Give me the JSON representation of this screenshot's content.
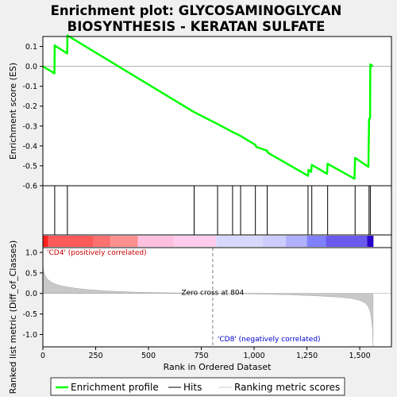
{
  "title_line1": "Enrichment plot: GLYCOSAMINOGLYCAN",
  "title_line2": "BIOSYNTHESIS - KERATAN SULFATE",
  "chart_data": {
    "type": "line",
    "panels": {
      "enrichment": {
        "ylabel": "Enrichment score (ES)",
        "ylim": [
          -0.6,
          0.15
        ],
        "yticks": [
          -0.6,
          -0.5,
          -0.4,
          -0.3,
          -0.2,
          -0.1,
          0.0,
          0.1
        ],
        "ytick_labels": [
          "-0.6",
          "-0.5",
          "-0.4",
          "-0.3",
          "-0.2",
          "-0.1",
          "0.0",
          "0.1"
        ],
        "series": [
          {
            "name": "Enrichment profile",
            "color": "#00ff00",
            "points": [
              [
                0,
                0.0
              ],
              [
                55,
                -0.035
              ],
              [
                56,
                0.105
              ],
              [
                115,
                0.065
              ],
              [
                116,
                0.155
              ],
              [
                716,
                -0.23
              ],
              [
                827,
                -0.29
              ],
              [
                898,
                -0.33
              ],
              [
                936,
                -0.35
              ],
              [
                1006,
                -0.395
              ],
              [
                1010,
                -0.405
              ],
              [
                1062,
                -0.425
              ],
              [
                1066,
                -0.435
              ],
              [
                1255,
                -0.55
              ],
              [
                1258,
                -0.52
              ],
              [
                1270,
                -0.53
              ],
              [
                1273,
                -0.495
              ],
              [
                1345,
                -0.54
              ],
              [
                1348,
                -0.49
              ],
              [
                1475,
                -0.565
              ],
              [
                1478,
                -0.46
              ],
              [
                1541,
                -0.505
              ],
              [
                1544,
                -0.265
              ],
              [
                1549,
                -0.26
              ],
              [
                1550,
                0.01
              ],
              [
                1562,
                0.0
              ]
            ]
          }
        ],
        "hits": [
          56,
          116,
          716,
          827,
          898,
          936,
          1006,
          1062,
          1255,
          1273,
          1348,
          1478,
          1544,
          1550
        ]
      },
      "ranked_metric": {
        "ylabel": "Ranked list metric (Diff_of_Classes)",
        "xlabel": "Rank in Ordered Dataset",
        "ylim": [
          -1.3,
          1.0
        ],
        "yticks": [
          -1.0,
          -0.5,
          0.0,
          0.5,
          1.0
        ],
        "ytick_labels": [
          "-1.0",
          "-0.5",
          "0.0",
          "0.5",
          "1.0"
        ],
        "xlim": [
          0,
          1650
        ],
        "xticks": [
          0,
          250,
          500,
          750,
          1000,
          1250,
          1500
        ],
        "xtick_labels": [
          "0",
          "250",
          "500",
          "750",
          "1,000",
          "1,250",
          "1,500"
        ],
        "points": [
          [
            0,
            0.68
          ],
          [
            5,
            0.52
          ],
          [
            12,
            0.42
          ],
          [
            25,
            0.33
          ],
          [
            45,
            0.26
          ],
          [
            70,
            0.21
          ],
          [
            100,
            0.17
          ],
          [
            150,
            0.13
          ],
          [
            200,
            0.1
          ],
          [
            300,
            0.06
          ],
          [
            450,
            0.03
          ],
          [
            600,
            0.015
          ],
          [
            804,
            0.0
          ],
          [
            1000,
            -0.015
          ],
          [
            1150,
            -0.03
          ],
          [
            1300,
            -0.06
          ],
          [
            1400,
            -0.09
          ],
          [
            1460,
            -0.12
          ],
          [
            1500,
            -0.17
          ],
          [
            1525,
            -0.23
          ],
          [
            1540,
            -0.32
          ],
          [
            1550,
            -0.45
          ],
          [
            1555,
            -0.6
          ],
          [
            1560,
            -0.85
          ],
          [
            1563,
            -1.3
          ]
        ],
        "zero_cross_rank": 804,
        "zero_cross_label": "Zero cross at 804",
        "pos_label": "'CD4' (positively correlated)",
        "neg_label": "'CD8' (negatively correlated)"
      }
    },
    "heat_bar": {
      "segments": [
        {
          "from": 0,
          "to": 25,
          "color": "#ff2020"
        },
        {
          "from": 25,
          "to": 240,
          "color": "#ff5a5a"
        },
        {
          "from": 240,
          "to": 320,
          "color": "#ff7070"
        },
        {
          "from": 320,
          "to": 450,
          "color": "#ff9090"
        },
        {
          "from": 450,
          "to": 620,
          "color": "#ffc0e0"
        },
        {
          "from": 620,
          "to": 820,
          "color": "#ffccee"
        },
        {
          "from": 820,
          "to": 1040,
          "color": "#d8d8ff"
        },
        {
          "from": 1040,
          "to": 1150,
          "color": "#ccccff"
        },
        {
          "from": 1150,
          "to": 1250,
          "color": "#b0b0ff"
        },
        {
          "from": 1250,
          "to": 1340,
          "color": "#8080ff"
        },
        {
          "from": 1340,
          "to": 1535,
          "color": "#6a5aee"
        },
        {
          "from": 1535,
          "to": 1565,
          "color": "#2a00cc"
        }
      ]
    },
    "legend": {
      "placement": "bottom",
      "items": [
        {
          "label": "Enrichment profile",
          "color": "#00ff00",
          "kind": "thick-line"
        },
        {
          "label": "Hits",
          "color": "#000000",
          "kind": "line"
        },
        {
          "label": "Ranking metric scores",
          "color": "#c8c8c8",
          "kind": "line"
        }
      ]
    }
  }
}
